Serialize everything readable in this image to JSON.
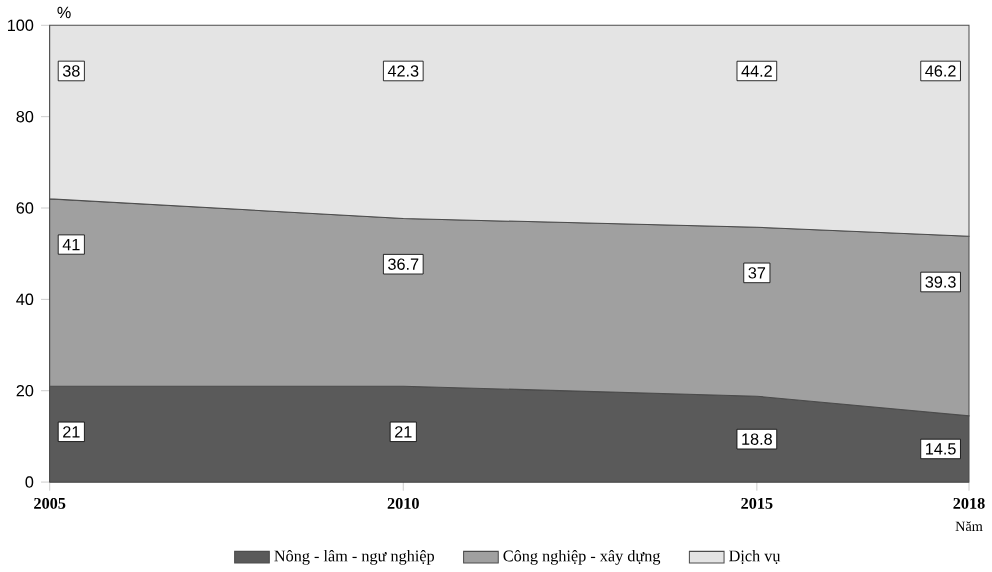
{
  "chart_data": {
    "type": "area",
    "stacked": true,
    "x": [
      2005,
      2010,
      2015,
      2018
    ],
    "xlim": [
      2005,
      2018
    ],
    "xticks": [
      2005,
      2010,
      2015,
      2018
    ],
    "ylim": [
      0,
      100
    ],
    "yticks": [
      0,
      20,
      40,
      60,
      80,
      100
    ],
    "ylabel": "%",
    "xlabel": "Năm",
    "legend": "bottom",
    "data_labels": true,
    "series": [
      {
        "name": "Nông - lâm - ngư nghiệp",
        "color": "#5a5a5a",
        "values": [
          21,
          21,
          18.8,
          14.5
        ]
      },
      {
        "name": "Công nghiệp - xây dựng",
        "color": "#a0a0a0",
        "values": [
          41,
          36.7,
          37,
          39.3
        ]
      },
      {
        "name": "Dịch vụ",
        "color": "#e4e4e4",
        "values": [
          38,
          42.3,
          44.2,
          46.2
        ]
      }
    ]
  }
}
